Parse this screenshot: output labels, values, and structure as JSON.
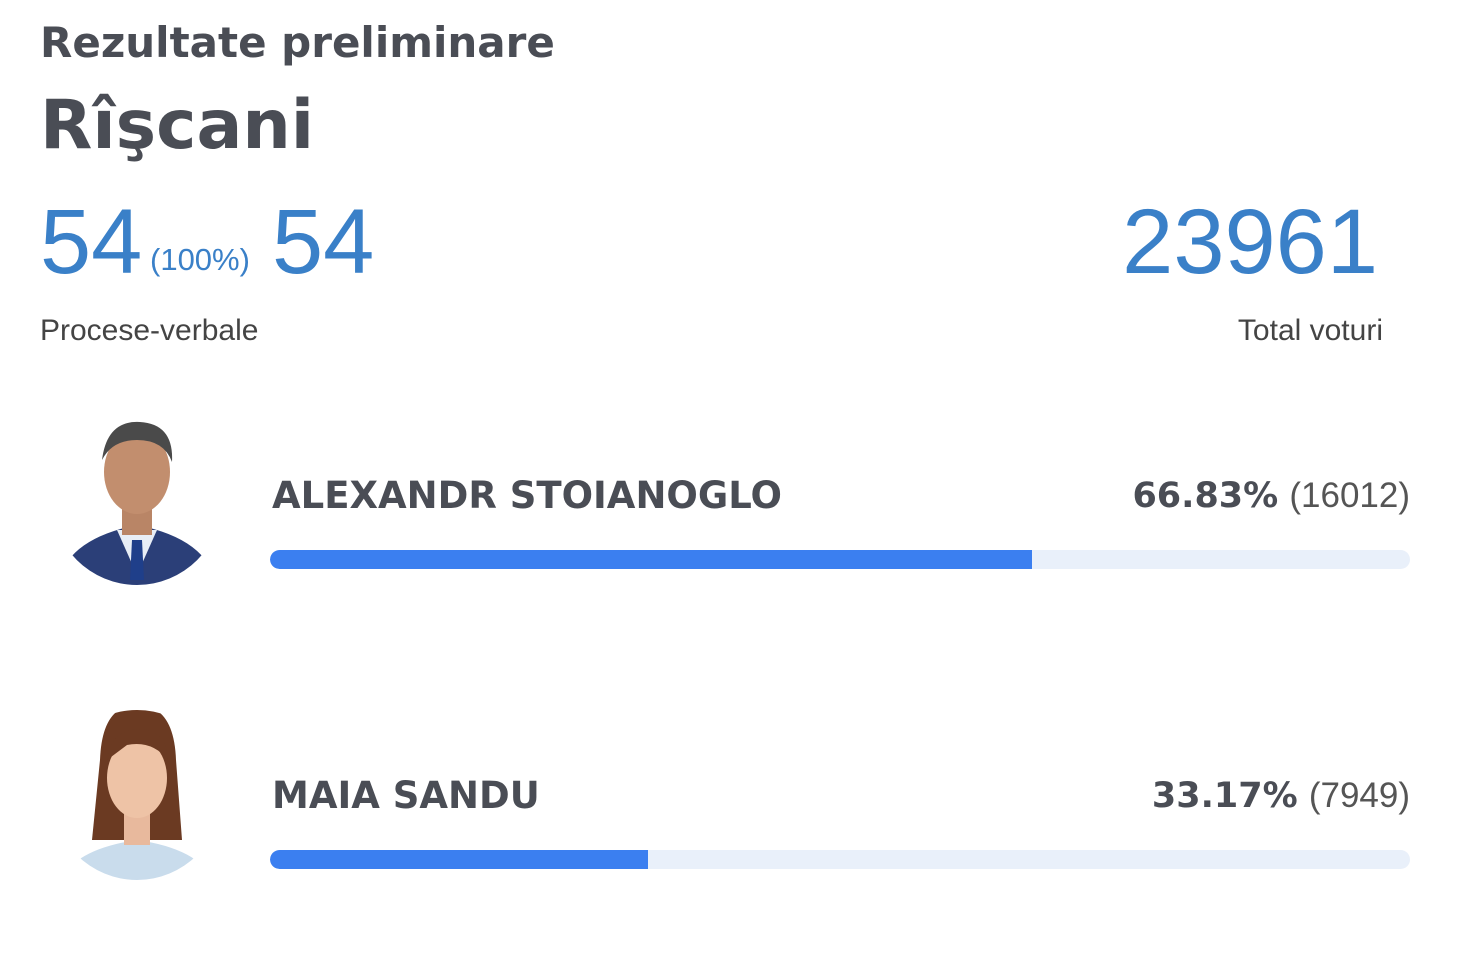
{
  "header": {
    "title": "Rezultate preliminare",
    "district": "Rîşcani"
  },
  "summary": {
    "protocols_counted": 54,
    "protocols_percent": "(100%)",
    "protocols_total": 54,
    "protocols_label": "Procese-verbale",
    "total_votes": 23961,
    "total_votes_label": "Total voturi"
  },
  "candidates": [
    {
      "name": "ALEXANDR STOIANOGLO",
      "percent": 66.83,
      "percent_label": "66.83%",
      "votes_label": "(16012)"
    },
    {
      "name": "MAIA SANDU",
      "percent": 33.17,
      "percent_label": "33.17%",
      "votes_label": "(7949)"
    }
  ]
}
